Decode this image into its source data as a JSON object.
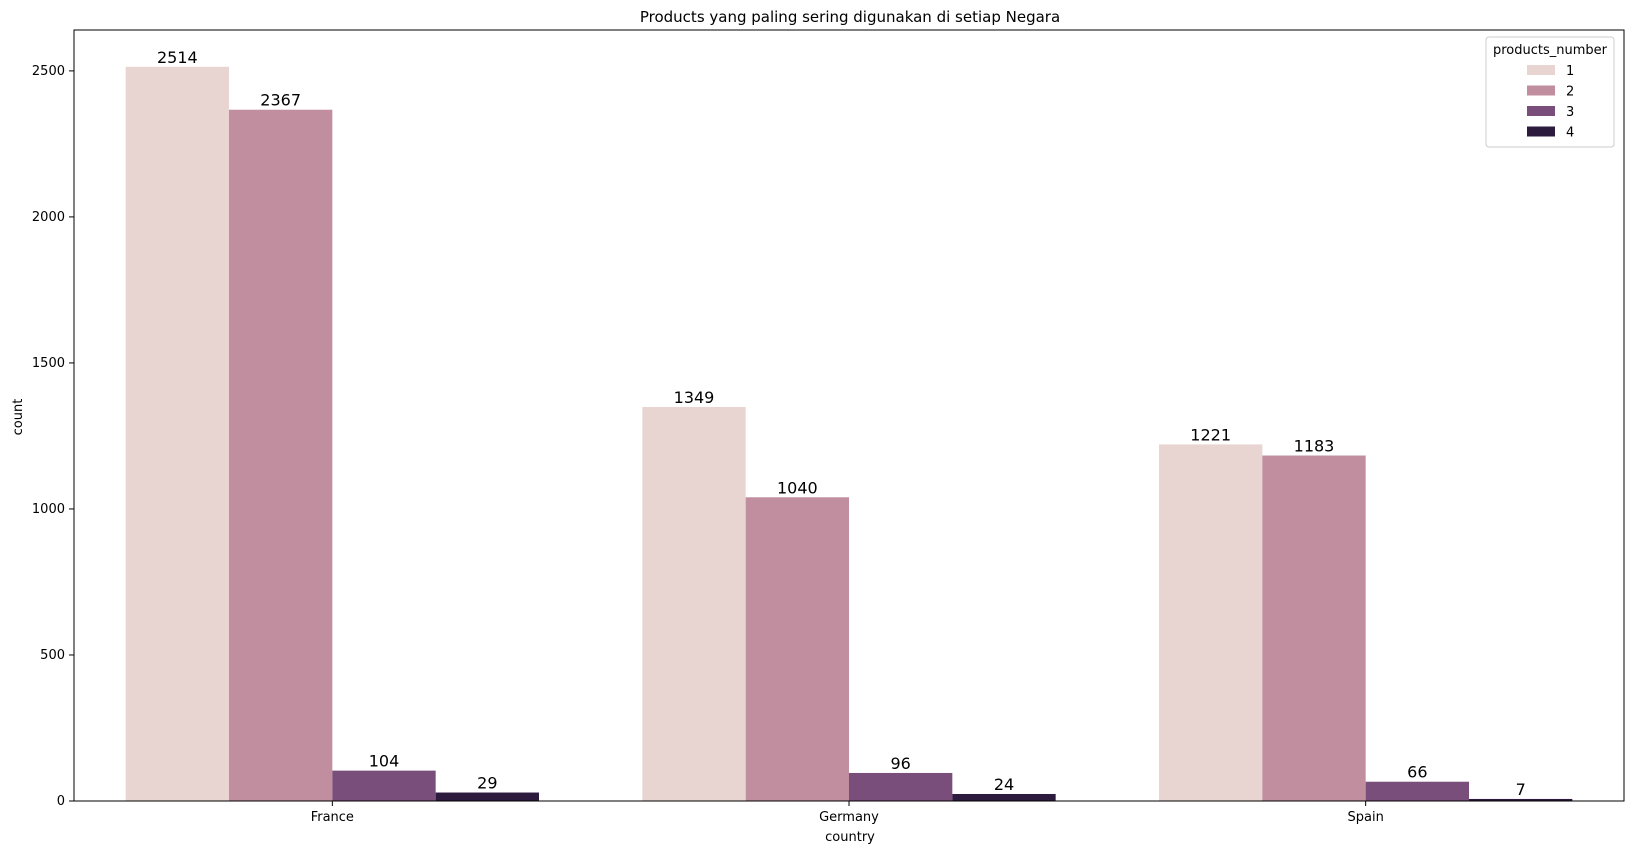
{
  "chart_data": {
    "type": "bar",
    "title": "Products yang paling sering digunakan di setiap Negara",
    "xlabel": "country",
    "ylabel": "count",
    "categories": [
      "France",
      "Germany",
      "Spain"
    ],
    "ylim": [
      0,
      2640
    ],
    "yticks": [
      0,
      500,
      1000,
      1500,
      2000,
      2500
    ],
    "legend": {
      "title": "products_number",
      "position": "top-right"
    },
    "series": [
      {
        "name": "1",
        "color": "#e8d4d1",
        "values": [
          2514,
          1349,
          1221
        ]
      },
      {
        "name": "2",
        "color": "#c08e9f",
        "values": [
          2367,
          1040,
          1183
        ]
      },
      {
        "name": "3",
        "color": "#7a4e7a",
        "values": [
          104,
          96,
          66
        ]
      },
      {
        "name": "4",
        "color": "#2d1b3d",
        "values": [
          29,
          24,
          7
        ]
      }
    ]
  }
}
